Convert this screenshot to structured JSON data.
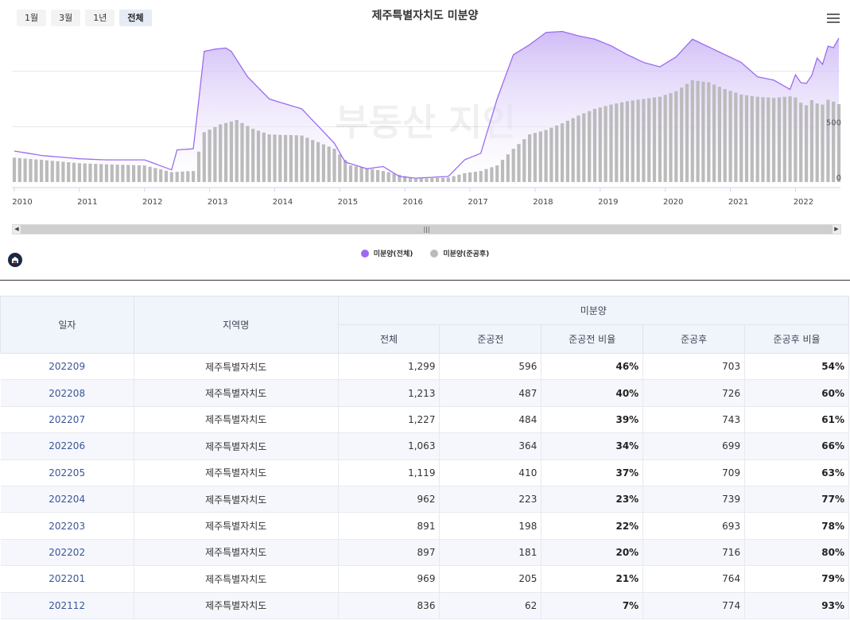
{
  "range_buttons": [
    {
      "label": "1월",
      "active": false
    },
    {
      "label": "3월",
      "active": false
    },
    {
      "label": "1년",
      "active": false
    },
    {
      "label": "전체",
      "active": true
    }
  ],
  "chart_data": {
    "type": "area",
    "title": "제주특별자치도 미분양",
    "x_tick_labels": [
      "2010",
      "2011",
      "2012",
      "2013",
      "2014",
      "2015",
      "2016",
      "2017",
      "2018",
      "2019",
      "2020",
      "2021",
      "2022"
    ],
    "y_tick_labels": [
      "0",
      "500"
    ],
    "ylim": [
      0,
      1500
    ],
    "x_range": [
      "2010-01",
      "2022-09"
    ],
    "grid": true,
    "legend_position": "bottom",
    "watermark": "부동산 지인",
    "series": [
      {
        "name": "미분양(전체)",
        "color": "#9b6cf0",
        "kind": "area",
        "points": [
          [
            "2010-01",
            280
          ],
          [
            "2010-06",
            240
          ],
          [
            "2011-01",
            210
          ],
          [
            "2011-06",
            200
          ],
          [
            "2012-01",
            200
          ],
          [
            "2012-06",
            110
          ],
          [
            "2012-07",
            290
          ],
          [
            "2012-10",
            300
          ],
          [
            "2012-12",
            1180
          ],
          [
            "2013-02",
            1200
          ],
          [
            "2013-04",
            1210
          ],
          [
            "2013-05",
            1180
          ],
          [
            "2013-08",
            950
          ],
          [
            "2013-12",
            750
          ],
          [
            "2014-06",
            660
          ],
          [
            "2014-12",
            350
          ],
          [
            "2015-02",
            180
          ],
          [
            "2015-06",
            120
          ],
          [
            "2015-09",
            140
          ],
          [
            "2015-12",
            50
          ],
          [
            "2016-03",
            35
          ],
          [
            "2016-09",
            50
          ],
          [
            "2016-12",
            200
          ],
          [
            "2017-03",
            260
          ],
          [
            "2017-06",
            750
          ],
          [
            "2017-09",
            1150
          ],
          [
            "2017-12",
            1240
          ],
          [
            "2018-03",
            1350
          ],
          [
            "2018-06",
            1360
          ],
          [
            "2018-09",
            1320
          ],
          [
            "2018-12",
            1290
          ],
          [
            "2019-03",
            1230
          ],
          [
            "2019-06",
            1150
          ],
          [
            "2019-09",
            1080
          ],
          [
            "2019-12",
            1040
          ],
          [
            "2020-03",
            1130
          ],
          [
            "2020-06",
            1290
          ],
          [
            "2020-09",
            1220
          ],
          [
            "2020-12",
            1150
          ],
          [
            "2021-03",
            1080
          ],
          [
            "2021-06",
            950
          ],
          [
            "2021-09",
            920
          ],
          [
            "2021-12",
            836
          ],
          [
            "2022-01",
            969
          ],
          [
            "2022-02",
            897
          ],
          [
            "2022-03",
            891
          ],
          [
            "2022-04",
            962
          ],
          [
            "2022-05",
            1119
          ],
          [
            "2022-06",
            1063
          ],
          [
            "2022-07",
            1227
          ],
          [
            "2022-08",
            1213
          ],
          [
            "2022-09",
            1299
          ]
        ]
      },
      {
        "name": "미분양(준공후)",
        "color": "#bbbbbb",
        "kind": "bar",
        "points": [
          [
            "2010-01",
            220
          ],
          [
            "2010-06",
            200
          ],
          [
            "2011-01",
            170
          ],
          [
            "2011-06",
            160
          ],
          [
            "2012-01",
            150
          ],
          [
            "2012-06",
            90
          ],
          [
            "2012-10",
            100
          ],
          [
            "2012-12",
            450
          ],
          [
            "2013-03",
            520
          ],
          [
            "2013-06",
            560
          ],
          [
            "2013-09",
            480
          ],
          [
            "2013-12",
            430
          ],
          [
            "2014-06",
            420
          ],
          [
            "2014-12",
            300
          ],
          [
            "2015-03",
            150
          ],
          [
            "2015-09",
            100
          ],
          [
            "2016-03",
            30
          ],
          [
            "2016-09",
            40
          ],
          [
            "2016-12",
            80
          ],
          [
            "2017-03",
            100
          ],
          [
            "2017-06",
            150
          ],
          [
            "2017-09",
            300
          ],
          [
            "2017-12",
            430
          ],
          [
            "2018-03",
            470
          ],
          [
            "2018-06",
            530
          ],
          [
            "2018-09",
            600
          ],
          [
            "2018-12",
            660
          ],
          [
            "2019-03",
            700
          ],
          [
            "2019-06",
            730
          ],
          [
            "2019-09",
            750
          ],
          [
            "2019-12",
            770
          ],
          [
            "2020-03",
            820
          ],
          [
            "2020-06",
            920
          ],
          [
            "2020-09",
            900
          ],
          [
            "2020-12",
            840
          ],
          [
            "2021-03",
            790
          ],
          [
            "2021-06",
            770
          ],
          [
            "2021-09",
            760
          ],
          [
            "2021-12",
            774
          ],
          [
            "2022-01",
            764
          ],
          [
            "2022-02",
            716
          ],
          [
            "2022-03",
            693
          ],
          [
            "2022-04",
            739
          ],
          [
            "2022-05",
            709
          ],
          [
            "2022-06",
            699
          ],
          [
            "2022-07",
            743
          ],
          [
            "2022-08",
            726
          ],
          [
            "2022-09",
            703
          ]
        ]
      }
    ]
  },
  "legend": [
    {
      "label": "미분양(전체)",
      "color": "#9b6cf0"
    },
    {
      "label": "미분양(준공후)",
      "color": "#bbbbbb"
    }
  ],
  "table": {
    "headers": {
      "date": "일자",
      "region": "지역명",
      "group": "미분양",
      "cols": [
        "전체",
        "준공전",
        "준공전 비율",
        "준공후",
        "준공후 비율"
      ]
    },
    "rows": [
      {
        "date": "202209",
        "region": "제주특별자치도",
        "total": "1,299",
        "pre": "596",
        "pre_ratio": "46%",
        "post": "703",
        "post_ratio": "54%"
      },
      {
        "date": "202208",
        "region": "제주특별자치도",
        "total": "1,213",
        "pre": "487",
        "pre_ratio": "40%",
        "post": "726",
        "post_ratio": "60%"
      },
      {
        "date": "202207",
        "region": "제주특별자치도",
        "total": "1,227",
        "pre": "484",
        "pre_ratio": "39%",
        "post": "743",
        "post_ratio": "61%"
      },
      {
        "date": "202206",
        "region": "제주특별자치도",
        "total": "1,063",
        "pre": "364",
        "pre_ratio": "34%",
        "post": "699",
        "post_ratio": "66%"
      },
      {
        "date": "202205",
        "region": "제주특별자치도",
        "total": "1,119",
        "pre": "410",
        "pre_ratio": "37%",
        "post": "709",
        "post_ratio": "63%"
      },
      {
        "date": "202204",
        "region": "제주특별자치도",
        "total": "962",
        "pre": "223",
        "pre_ratio": "23%",
        "post": "739",
        "post_ratio": "77%"
      },
      {
        "date": "202203",
        "region": "제주특별자치도",
        "total": "891",
        "pre": "198",
        "pre_ratio": "22%",
        "post": "693",
        "post_ratio": "78%"
      },
      {
        "date": "202202",
        "region": "제주특별자치도",
        "total": "897",
        "pre": "181",
        "pre_ratio": "20%",
        "post": "716",
        "post_ratio": "80%"
      },
      {
        "date": "202201",
        "region": "제주특별자치도",
        "total": "969",
        "pre": "205",
        "pre_ratio": "21%",
        "post": "764",
        "post_ratio": "79%"
      },
      {
        "date": "202112",
        "region": "제주특별자치도",
        "total": "836",
        "pre": "62",
        "pre_ratio": "7%",
        "post": "774",
        "post_ratio": "93%"
      }
    ]
  }
}
